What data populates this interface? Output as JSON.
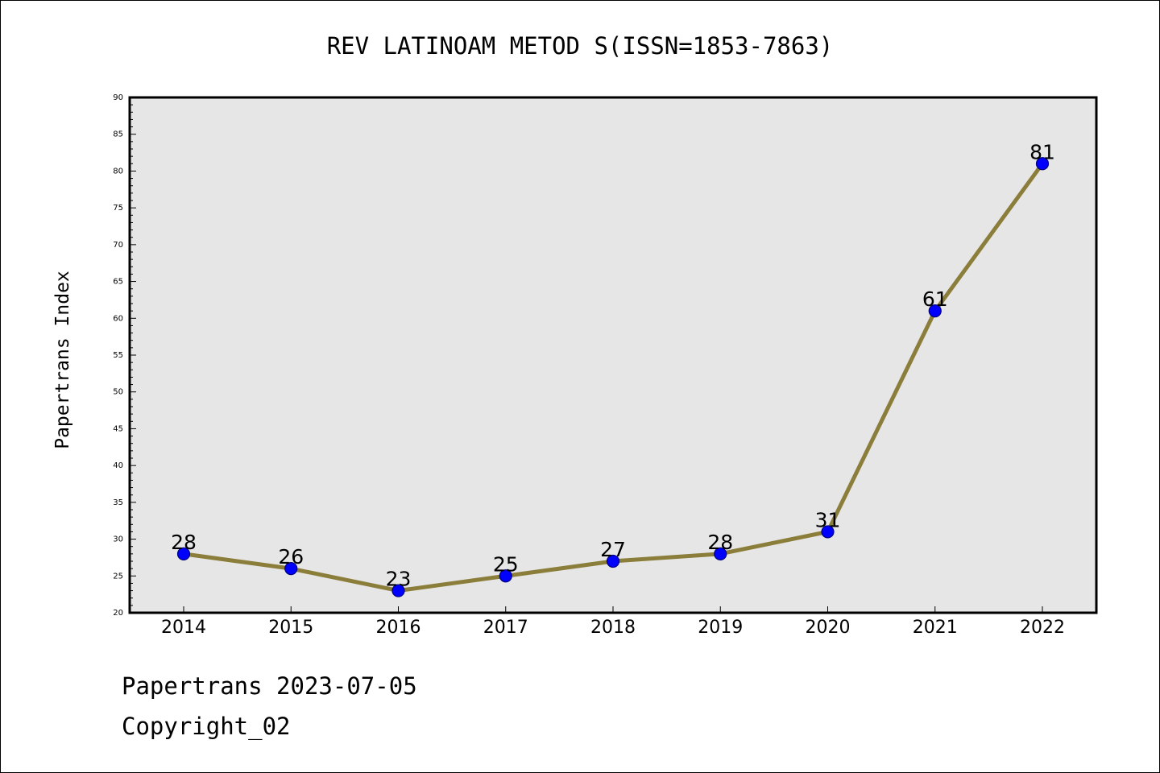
{
  "footer": {
    "line1": "Papertrans 2023-07-05",
    "line2": "Copyright_02"
  },
  "colors": {
    "plot_background": "#e6e6e6",
    "line": "#8b7d3a",
    "marker_fill": "#0000ff",
    "marker_edge": "#000080",
    "text": "#000000"
  },
  "chart_data": {
    "type": "line",
    "title": "REV LATINOAM METOD S(ISSN=1853-7863)",
    "xlabel": "",
    "ylabel": "Papertrans Index",
    "categories": [
      "2014",
      "2015",
      "2016",
      "2017",
      "2018",
      "2019",
      "2020",
      "2021",
      "2022"
    ],
    "values": [
      28,
      26,
      23,
      25,
      27,
      28,
      31,
      61,
      81
    ],
    "data_labels": [
      "28",
      "26",
      "23",
      "25",
      "27",
      "28",
      "31",
      "61",
      "81"
    ],
    "ylim": [
      20,
      90
    ],
    "yticks": [
      "20",
      "25",
      "30",
      "35",
      "40",
      "45",
      "50",
      "55",
      "60",
      "65",
      "70",
      "75",
      "80",
      "85",
      "90"
    ],
    "grid": false,
    "legend": "none"
  }
}
